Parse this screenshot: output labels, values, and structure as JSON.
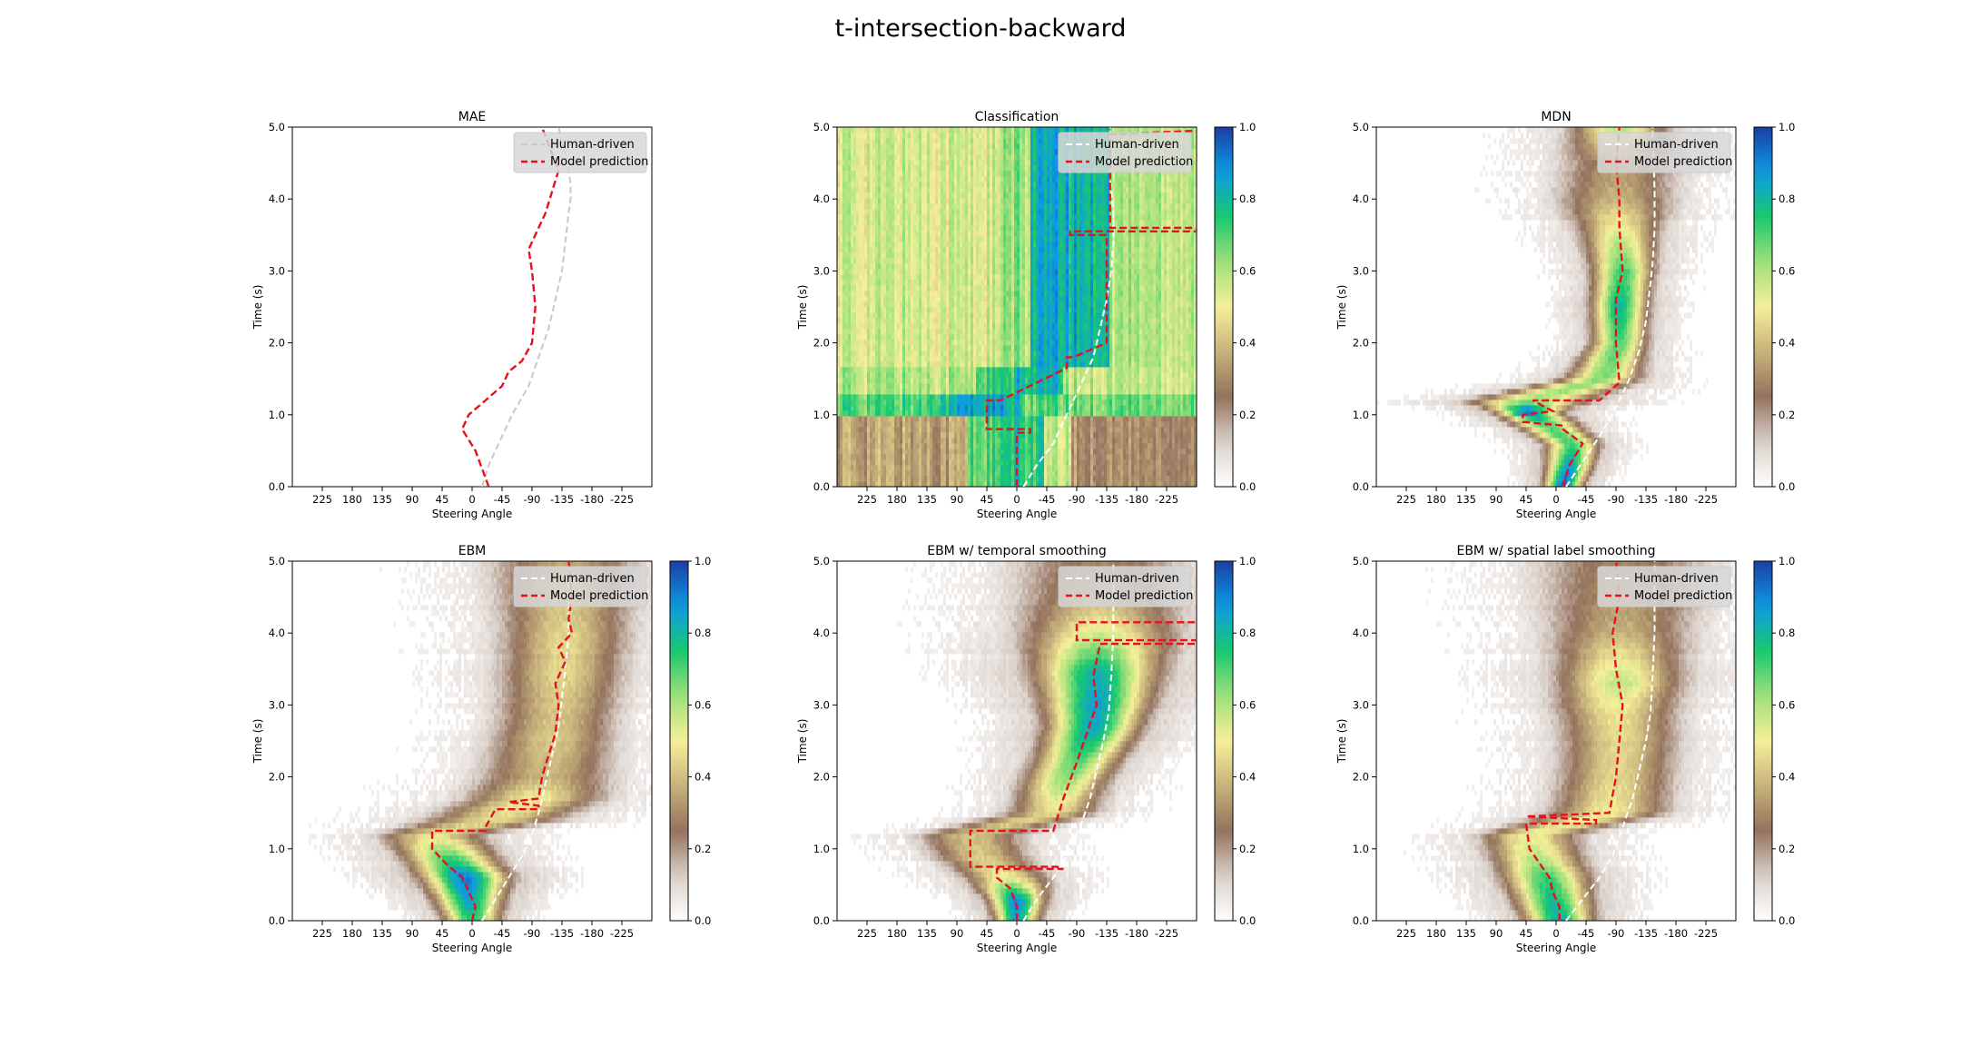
{
  "figure": {
    "suptitle": "t-intersection-backward",
    "colors": {
      "human": "#ffffff",
      "human_mae": "#c8c8c8",
      "model": "#e8101a",
      "colormap": [
        "#ffffff",
        "#d9cfc8",
        "#94735d",
        "#c7b27c",
        "#f5ef98",
        "#9fe07a",
        "#19c96e",
        "#0d99e6",
        "#1a3fa3"
      ]
    },
    "legend": {
      "human": "Human-driven",
      "model": "Model prediction"
    },
    "colorbar_ticks": [
      "0.0",
      "0.2",
      "0.4",
      "0.6",
      "0.8",
      "1.0"
    ]
  },
  "chart_data": [
    {
      "type": "line",
      "title": "MAE",
      "xlabel": "Steering Angle",
      "ylabel": "Time (s)",
      "xlim": [
        270,
        -270
      ],
      "ylim": [
        0,
        5
      ],
      "xticks": [
        "225",
        "180",
        "135",
        "90",
        "45",
        "0",
        "-45",
        "-90",
        "-135",
        "-180",
        "-225"
      ],
      "yticks": [
        "0.0",
        "1.0",
        "2.0",
        "3.0",
        "4.0",
        "5.0"
      ],
      "has_heatmap": false,
      "human_x": [
        -15,
        -25,
        -40,
        -60,
        -85,
        -100,
        -115,
        -125,
        -135,
        -140,
        -145,
        -148,
        -148,
        -145,
        -138,
        -130
      ],
      "human_y": [
        0.0,
        0.3,
        0.6,
        1.0,
        1.4,
        1.8,
        2.2,
        2.6,
        3.0,
        3.4,
        3.8,
        4.0,
        4.2,
        4.4,
        4.7,
        5.0
      ],
      "model_x": [
        -25,
        -5,
        15,
        5,
        -20,
        -45,
        -55,
        -75,
        -90,
        -95,
        -90,
        -85,
        -100,
        -110,
        -120,
        -130,
        -105
      ],
      "model_y": [
        0.0,
        0.5,
        0.8,
        1.0,
        1.2,
        1.4,
        1.6,
        1.75,
        2.0,
        2.5,
        3.0,
        3.3,
        3.6,
        3.8,
        4.1,
        4.4,
        5.0
      ],
      "heatmap": null
    },
    {
      "type": "heatmap",
      "title": "Classification",
      "xlabel": "Steering Angle",
      "ylabel": "Time (s)",
      "xlim": [
        270,
        -270
      ],
      "ylim": [
        0,
        5
      ],
      "xticks": [
        "225",
        "180",
        "135",
        "90",
        "45",
        "0",
        "-45",
        "-90",
        "-135",
        "-180",
        "-225"
      ],
      "yticks": [
        "0.0",
        "1.0",
        "2.0",
        "3.0",
        "4.0",
        "5.0"
      ],
      "colorbar": true,
      "has_heatmap": true,
      "human_x": [
        -10,
        -30,
        -55,
        -75,
        -95,
        -115,
        -125,
        -135,
        -142,
        -145,
        -145,
        -140,
        -140
      ],
      "human_y": [
        0.0,
        0.3,
        0.6,
        1.0,
        1.4,
        1.8,
        2.2,
        2.6,
        3.0,
        3.4,
        3.8,
        4.3,
        5.0
      ],
      "model_x": [
        0,
        0,
        0,
        -20,
        -20,
        45,
        45,
        25,
        -75,
        -75,
        -85,
        -110,
        -135,
        -135,
        -80,
        -80,
        -270,
        -270,
        -140,
        -140,
        -270
      ],
      "model_y": [
        0.0,
        0.5,
        0.75,
        0.75,
        0.8,
        0.8,
        1.2,
        1.2,
        1.65,
        1.8,
        1.8,
        1.9,
        2.0,
        3.5,
        3.5,
        3.55,
        3.55,
        3.6,
        3.6,
        4.9,
        4.95
      ],
      "heatmap": {
        "bands": [
          {
            "y": [
              0.0,
              1.0
            ],
            "regions": [
              {
                "x": [
                  270,
                  75
                ],
                "v": 0.35
              },
              {
                "x": [
                  75,
                  15
                ],
                "v": 0.7
              },
              {
                "x": [
                  15,
                  -40
                ],
                "v": 0.75
              },
              {
                "x": [
                  -40,
                  -80
                ],
                "v": 0.55
              },
              {
                "x": [
                  -80,
                  -270
                ],
                "v": 0.3
              }
            ]
          },
          {
            "y": [
              1.0,
              1.25
            ],
            "regions": [
              {
                "x": [
                  270,
                  130
                ],
                "v": 0.7
              },
              {
                "x": [
                  130,
                  90
                ],
                "v": 0.78
              },
              {
                "x": [
                  90,
                  20
                ],
                "v": 0.85
              },
              {
                "x": [
                  20,
                  -10
                ],
                "v": 0.78
              },
              {
                "x": [
                  -10,
                  -270
                ],
                "v": 0.68
              }
            ]
          },
          {
            "y": [
              1.25,
              1.65
            ],
            "regions": [
              {
                "x": [
                  270,
                  60
                ],
                "v": 0.6
              },
              {
                "x": [
                  60,
                  0
                ],
                "v": 0.72
              },
              {
                "x": [
                  0,
                  -70
                ],
                "v": 0.8
              },
              {
                "x": [
                  -70,
                  -270
                ],
                "v": 0.58
              }
            ]
          },
          {
            "y": [
              1.65,
              5.0
            ],
            "regions": [
              {
                "x": [
                  270,
                  20
                ],
                "v": 0.55
              },
              {
                "x": [
                  20,
                  -20
                ],
                "v": 0.62
              },
              {
                "x": [
                  -20,
                  -140
                ],
                "v": 0.82
              },
              {
                "x": [
                  -140,
                  -270
                ],
                "v": 0.6
              }
            ]
          }
        ]
      }
    },
    {
      "type": "heatmap",
      "title": "MDN",
      "xlabel": "Steering Angle",
      "ylabel": "Time (s)",
      "xlim": [
        270,
        -270
      ],
      "ylim": [
        0,
        5
      ],
      "xticks": [
        "225",
        "180",
        "135",
        "90",
        "45",
        "0",
        "-45",
        "-90",
        "-135",
        "-180",
        "-225"
      ],
      "yticks": [
        "0.0",
        "1.0",
        "2.0",
        "3.0",
        "4.0",
        "5.0"
      ],
      "colorbar": true,
      "has_heatmap": true,
      "human_x": [
        -15,
        -40,
        -65,
        -90,
        -110,
        -125,
        -135,
        -140,
        -145,
        -148,
        -148,
        -145
      ],
      "human_y": [
        0.0,
        0.35,
        0.7,
        1.1,
        1.5,
        1.9,
        2.3,
        2.7,
        3.1,
        3.6,
        4.1,
        5.0
      ],
      "model_x": [
        -10,
        -20,
        -40,
        -10,
        -10,
        50,
        50,
        5,
        35,
        -65,
        -95,
        -90,
        -90,
        -100,
        -95,
        -95,
        -90,
        -95
      ],
      "model_y": [
        0.0,
        0.3,
        0.6,
        0.8,
        0.85,
        0.9,
        1.0,
        1.05,
        1.2,
        1.2,
        1.45,
        2.0,
        2.6,
        3.0,
        3.6,
        4.0,
        4.5,
        5.0
      ],
      "heatmap": {
        "centers_y": [
          0.0,
          0.3,
          0.6,
          0.9,
          1.05,
          1.2,
          1.5,
          2.0,
          2.5,
          3.0,
          3.5,
          4.0,
          4.5,
          5.0
        ],
        "centers_x": [
          -10,
          -20,
          -25,
          20,
          45,
          40,
          -70,
          -95,
          -95,
          -100,
          -95,
          -90,
          -95,
          -95
        ],
        "widths": [
          12,
          15,
          18,
          22,
          20,
          40,
          25,
          18,
          18,
          20,
          25,
          40,
          40,
          30
        ],
        "peaks": [
          0.95,
          0.85,
          0.7,
          0.7,
          0.95,
          0.6,
          0.65,
          0.7,
          0.8,
          0.72,
          0.55,
          0.38,
          0.32,
          0.6
        ]
      }
    },
    {
      "type": "heatmap",
      "title": "EBM",
      "xlabel": "Steering Angle",
      "ylabel": "Time (s)",
      "xlim": [
        270,
        -270
      ],
      "ylim": [
        0,
        5
      ],
      "xticks": [
        "225",
        "180",
        "135",
        "90",
        "45",
        "0",
        "-45",
        "-90",
        "-135",
        "-180",
        "-225"
      ],
      "yticks": [
        "0.0",
        "1.0",
        "2.0",
        "3.0",
        "4.0",
        "5.0"
      ],
      "colorbar": true,
      "has_heatmap": true,
      "human_x": [
        -15,
        -35,
        -55,
        -75,
        -90,
        -100,
        -110,
        -120,
        -130,
        -135,
        -140,
        -145,
        -145
      ],
      "human_y": [
        0.0,
        0.3,
        0.6,
        0.9,
        1.2,
        1.5,
        1.9,
        2.3,
        2.7,
        3.1,
        3.5,
        4.0,
        5.0
      ],
      "model_x": [
        0,
        -5,
        5,
        15,
        40,
        60,
        60,
        -20,
        -20,
        -35,
        -100,
        -100,
        -55,
        -100,
        -105,
        -115,
        -125,
        -130,
        -125,
        -140,
        -130,
        -150,
        -145,
        -150,
        -145
      ],
      "model_y": [
        0.0,
        0.2,
        0.4,
        0.6,
        0.8,
        1.0,
        1.25,
        1.25,
        1.3,
        1.55,
        1.55,
        1.6,
        1.65,
        1.7,
        2.0,
        2.3,
        2.6,
        3.0,
        3.3,
        3.6,
        3.8,
        4.0,
        4.2,
        4.5,
        5.0
      ],
      "heatmap": {
        "centers_y": [
          0.0,
          0.3,
          0.6,
          0.9,
          1.2,
          1.4,
          1.7,
          2.0,
          2.5,
          3.0,
          3.5,
          4.0,
          4.5,
          5.0
        ],
        "centers_x": [
          0,
          5,
          10,
          35,
          60,
          -30,
          -95,
          -110,
          -120,
          -130,
          -135,
          -140,
          -140,
          -140
        ],
        "widths": [
          18,
          22,
          28,
          30,
          35,
          45,
          45,
          45,
          40,
          40,
          40,
          42,
          45,
          50
        ],
        "peaks": [
          0.75,
          0.85,
          0.92,
          0.7,
          0.45,
          0.45,
          0.5,
          0.38,
          0.42,
          0.42,
          0.45,
          0.45,
          0.4,
          0.35
        ]
      }
    },
    {
      "type": "heatmap",
      "title": "EBM w/ temporal smoothing",
      "xlabel": "Steering Angle",
      "ylabel": "Time (s)",
      "xlim": [
        270,
        -270
      ],
      "ylim": [
        0,
        5
      ],
      "xticks": [
        "225",
        "180",
        "135",
        "90",
        "45",
        "0",
        "-45",
        "-90",
        "-135",
        "-180",
        "-225"
      ],
      "yticks": [
        "0.0",
        "1.0",
        "2.0",
        "3.0",
        "4.0",
        "5.0"
      ],
      "colorbar": true,
      "has_heatmap": true,
      "human_x": [
        -10,
        -30,
        -55,
        -75,
        -95,
        -110,
        -120,
        -130,
        -138,
        -142,
        -145,
        -145
      ],
      "human_y": [
        0.0,
        0.3,
        0.6,
        0.9,
        1.3,
        1.7,
        2.1,
        2.5,
        2.9,
        3.4,
        4.0,
        5.0
      ],
      "model_x": [
        0,
        0,
        10,
        30,
        30,
        -70,
        -60,
        70,
        70,
        -55,
        -70,
        -90,
        -105,
        -120,
        -115,
        -125,
        -270,
        -270,
        -90,
        -90,
        -270
      ],
      "model_y": [
        0.0,
        0.2,
        0.45,
        0.6,
        0.72,
        0.72,
        0.75,
        0.75,
        1.25,
        1.25,
        1.7,
        2.2,
        2.6,
        3.0,
        3.4,
        3.85,
        3.85,
        3.9,
        3.9,
        4.15,
        4.15
      ],
      "heatmap": {
        "centers_y": [
          0.0,
          0.3,
          0.6,
          0.9,
          1.2,
          1.5,
          1.9,
          2.3,
          2.7,
          3.1,
          3.5,
          4.0,
          4.5,
          5.0
        ],
        "centers_x": [
          0,
          0,
          15,
          55,
          70,
          -55,
          -70,
          -95,
          -115,
          -120,
          -120,
          -125,
          -125,
          -125
        ],
        "widths": [
          14,
          18,
          28,
          32,
          35,
          30,
          28,
          28,
          30,
          35,
          40,
          50,
          55,
          60
        ],
        "peaks": [
          0.85,
          0.9,
          0.5,
          0.42,
          0.4,
          0.45,
          0.62,
          0.72,
          0.85,
          0.85,
          0.8,
          0.55,
          0.35,
          0.28
        ]
      }
    },
    {
      "type": "heatmap",
      "title": "EBM w/ spatial label smoothing",
      "xlabel": "Steering Angle",
      "ylabel": "Time (s)",
      "xlim": [
        270,
        -270
      ],
      "ylim": [
        0,
        5
      ],
      "xticks": [
        "225",
        "180",
        "135",
        "90",
        "45",
        "0",
        "-45",
        "-90",
        "-135",
        "-180",
        "-225"
      ],
      "yticks": [
        "0.0",
        "1.0",
        "2.0",
        "3.0",
        "4.0",
        "5.0"
      ],
      "colorbar": true,
      "has_heatmap": true,
      "human_x": [
        -15,
        -40,
        -65,
        -85,
        -100,
        -115,
        -125,
        -135,
        -142,
        -145,
        -148,
        -148
      ],
      "human_y": [
        0.0,
        0.3,
        0.6,
        0.9,
        1.3,
        1.7,
        2.1,
        2.5,
        2.9,
        3.4,
        4.0,
        5.0
      ],
      "model_x": [
        -5,
        -5,
        5,
        10,
        25,
        40,
        45,
        -60,
        -60,
        45,
        -80,
        -90,
        -95,
        -100,
        -90,
        -85,
        -95,
        -90
      ],
      "model_y": [
        0.0,
        0.2,
        0.4,
        0.6,
        0.8,
        1.0,
        1.35,
        1.35,
        1.4,
        1.45,
        1.5,
        2.0,
        2.5,
        3.0,
        3.5,
        4.0,
        4.5,
        5.0
      ],
      "heatmap": {
        "centers_y": [
          0.0,
          0.3,
          0.6,
          0.9,
          1.2,
          1.5,
          2.0,
          2.5,
          3.0,
          3.3,
          3.6,
          4.0,
          4.5,
          5.0
        ],
        "centers_x": [
          -5,
          5,
          15,
          30,
          40,
          -80,
          -90,
          -95,
          -90,
          -95,
          -95,
          -95,
          -100,
          -100
        ],
        "widths": [
          22,
          25,
          28,
          30,
          32,
          38,
          38,
          38,
          40,
          40,
          42,
          48,
          55,
          60
        ],
        "peaks": [
          0.82,
          0.78,
          0.72,
          0.58,
          0.5,
          0.5,
          0.45,
          0.45,
          0.5,
          0.58,
          0.5,
          0.38,
          0.32,
          0.28
        ]
      }
    }
  ]
}
